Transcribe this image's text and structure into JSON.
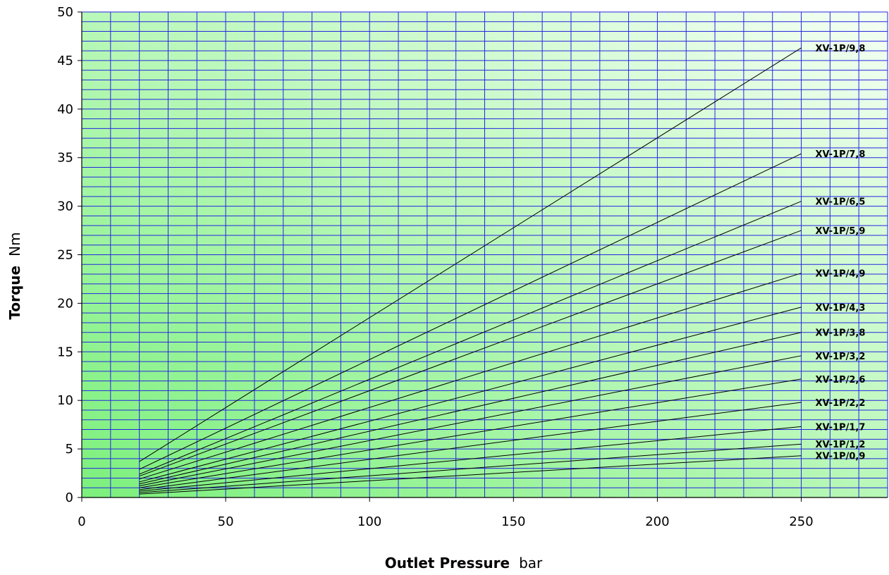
{
  "chart_data": {
    "type": "line",
    "xlabel": "Outlet Pressure",
    "xunit": "bar",
    "ylabel": "Torque",
    "yunit": "Nm",
    "xlim": [
      0,
      280
    ],
    "ylim": [
      0,
      50
    ],
    "x_ticks": [
      0,
      50,
      100,
      150,
      200,
      250
    ],
    "y_ticks": [
      0,
      5,
      10,
      15,
      20,
      25,
      30,
      35,
      40,
      45,
      50
    ],
    "grid": true,
    "grid_x_step": 10,
    "grid_y_step": 1,
    "colors": {
      "grid": "#2626e0",
      "line": "#000000",
      "background_left": "#7cf07c",
      "background_right": "#f4fff4"
    },
    "series": [
      {
        "name": "XV-1P/9,8",
        "x": [
          20,
          250
        ],
        "y": [
          3.7,
          46.3
        ]
      },
      {
        "name": "XV-1P/7,8",
        "x": [
          20,
          250
        ],
        "y": [
          2.9,
          35.4
        ]
      },
      {
        "name": "XV-1P/6,5",
        "x": [
          20,
          250
        ],
        "y": [
          2.4,
          30.5
        ]
      },
      {
        "name": "XV-1P/5,9",
        "x": [
          20,
          250
        ],
        "y": [
          2.2,
          27.5
        ]
      },
      {
        "name": "XV-1P/4,9",
        "x": [
          20,
          250
        ],
        "y": [
          1.9,
          23.1
        ]
      },
      {
        "name": "XV-1P/4,3",
        "x": [
          20,
          250
        ],
        "y": [
          1.6,
          19.6
        ]
      },
      {
        "name": "XV-1P/3,8",
        "x": [
          20,
          250
        ],
        "y": [
          1.4,
          17.0
        ]
      },
      {
        "name": "XV-1P/3,2",
        "x": [
          20,
          250
        ],
        "y": [
          1.2,
          14.6
        ]
      },
      {
        "name": "XV-1P/2,6",
        "x": [
          20,
          250
        ],
        "y": [
          1.0,
          12.2
        ]
      },
      {
        "name": "XV-1P/2,2",
        "x": [
          20,
          250
        ],
        "y": [
          0.8,
          9.8
        ]
      },
      {
        "name": "XV-1P/1,7",
        "x": [
          20,
          250
        ],
        "y": [
          0.65,
          7.3
        ]
      },
      {
        "name": "XV-1P/1,2",
        "x": [
          20,
          250
        ],
        "y": [
          0.5,
          5.5
        ]
      },
      {
        "name": "XV-1P/0,9",
        "x": [
          20,
          250
        ],
        "y": [
          0.35,
          4.3
        ]
      }
    ]
  }
}
